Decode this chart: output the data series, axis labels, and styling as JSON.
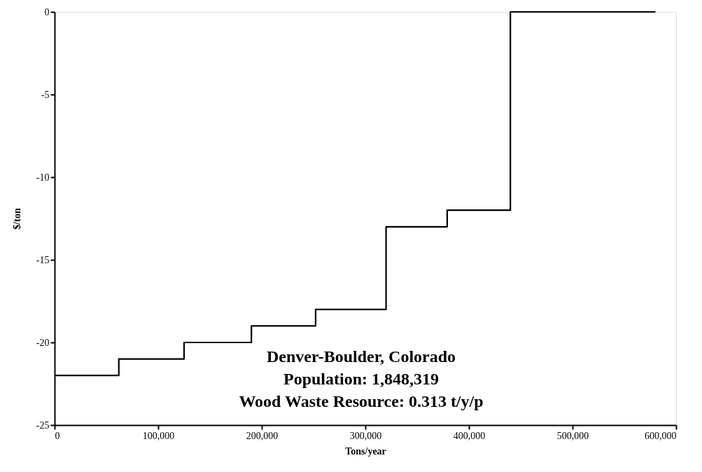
{
  "chart_data": {
    "type": "step",
    "xlabel": "Tons/year",
    "ylabel": "$/ton",
    "x": [
      0,
      62000,
      125000,
      190000,
      252000,
      320000,
      379000,
      440000,
      580000
    ],
    "series": [
      {
        "color": "#000000",
        "values": [
          -22,
          -21,
          -20,
          -19,
          -18,
          -13,
          -12,
          0,
          0
        ]
      }
    ],
    "xlim": [
      0,
      600000
    ],
    "ylim": [
      -25,
      0
    ],
    "xticks": [
      0,
      {
        "value": 100000,
        "label": "100,000"
      },
      {
        "value": 200000,
        "label": "200,000"
      },
      {
        "value": 300000,
        "label": "300,000"
      },
      {
        "value": 400000,
        "label": "400,000"
      },
      {
        "value": 500000,
        "label": "500,000"
      },
      {
        "value": 600000,
        "label": "600,000"
      }
    ],
    "yticks": [
      -25,
      -20,
      -15,
      -10,
      -5,
      0
    ],
    "grid": false,
    "marker": "none",
    "line_style": "solid",
    "annotations": [
      "Denver-Boulder, Colorado",
      "Population:   1,848,319",
      "Wood Waste Resource:   0.313 t/y/p"
    ]
  }
}
